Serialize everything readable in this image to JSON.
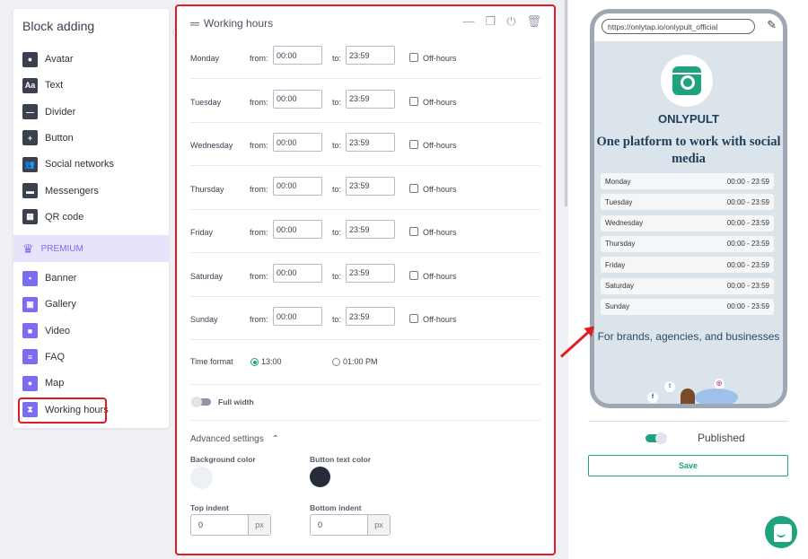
{
  "sidebar": {
    "title": "Block adding",
    "collapse_icon": "chevron-left",
    "items": [
      {
        "label": "Avatar",
        "icon": "avatar"
      },
      {
        "label": "Text",
        "icon": "text"
      },
      {
        "label": "Divider",
        "icon": "divider"
      },
      {
        "label": "Button",
        "icon": "button"
      },
      {
        "label": "Social networks",
        "icon": "users"
      },
      {
        "label": "Messengers",
        "icon": "chat"
      },
      {
        "label": "QR code",
        "icon": "qr"
      }
    ],
    "premium_label": "PREMIUM",
    "premium_items": [
      {
        "label": "Banner",
        "icon": "image"
      },
      {
        "label": "Gallery",
        "icon": "gallery"
      },
      {
        "label": "Video",
        "icon": "video"
      },
      {
        "label": "FAQ",
        "icon": "list"
      },
      {
        "label": "Map",
        "icon": "map-pin"
      },
      {
        "label": "Working hours",
        "icon": "hourglass"
      }
    ]
  },
  "editor": {
    "title": "Working hours",
    "from_label": "from:",
    "to_label": "to:",
    "offhours_label": "Off-hours",
    "days": [
      {
        "day": "Monday",
        "from": "00:00",
        "to": "23:59"
      },
      {
        "day": "Tuesday",
        "from": "00:00",
        "to": "23:59"
      },
      {
        "day": "Wednesday",
        "from": "00:00",
        "to": "23:59"
      },
      {
        "day": "Thursday",
        "from": "00:00",
        "to": "23:59"
      },
      {
        "day": "Friday",
        "from": "00:00",
        "to": "23:59"
      },
      {
        "day": "Saturday",
        "from": "00:00",
        "to": "23:59"
      },
      {
        "day": "Sunday",
        "from": "00:00",
        "to": "23:59"
      }
    ],
    "time_format_label": "Time format",
    "format_24": "13:00",
    "format_12": "01:00 PM",
    "selected_format": "13:00",
    "full_width_label": "Full width",
    "full_width": false,
    "advanced_label": "Advanced settings",
    "bg_color_label": "Background color",
    "bg_color": "#eef1f4",
    "btn_text_color_label": "Button text color",
    "btn_text_color": "#262d38",
    "top_indent_label": "Top indent",
    "top_indent": "0",
    "bottom_indent_label": "Bottom indent",
    "bottom_indent": "0",
    "unit": "px"
  },
  "preview": {
    "url": "https://onlytap.io/onlypult_official",
    "brand": "ONLYPULT",
    "tagline": "One platform to work with social media",
    "hours": [
      {
        "day": "Monday",
        "time": "00:00 - 23:59"
      },
      {
        "day": "Tuesday",
        "time": "00:00 - 23:59"
      },
      {
        "day": "Wednesday",
        "time": "00:00 - 23:59"
      },
      {
        "day": "Thursday",
        "time": "00:00 - 23:59"
      },
      {
        "day": "Friday",
        "time": "00:00 - 23:59"
      },
      {
        "day": "Saturday",
        "time": "00:00 - 23:59"
      },
      {
        "day": "Sunday",
        "time": "00:00 - 23:59"
      }
    ],
    "subtitle": "For brands, agencies, and businesses",
    "published_label": "Published",
    "published": true,
    "save_label": "Save"
  },
  "colors": {
    "accent": "#1fa37f",
    "premium": "#7b6cf0",
    "highlight": "#e01b24"
  }
}
